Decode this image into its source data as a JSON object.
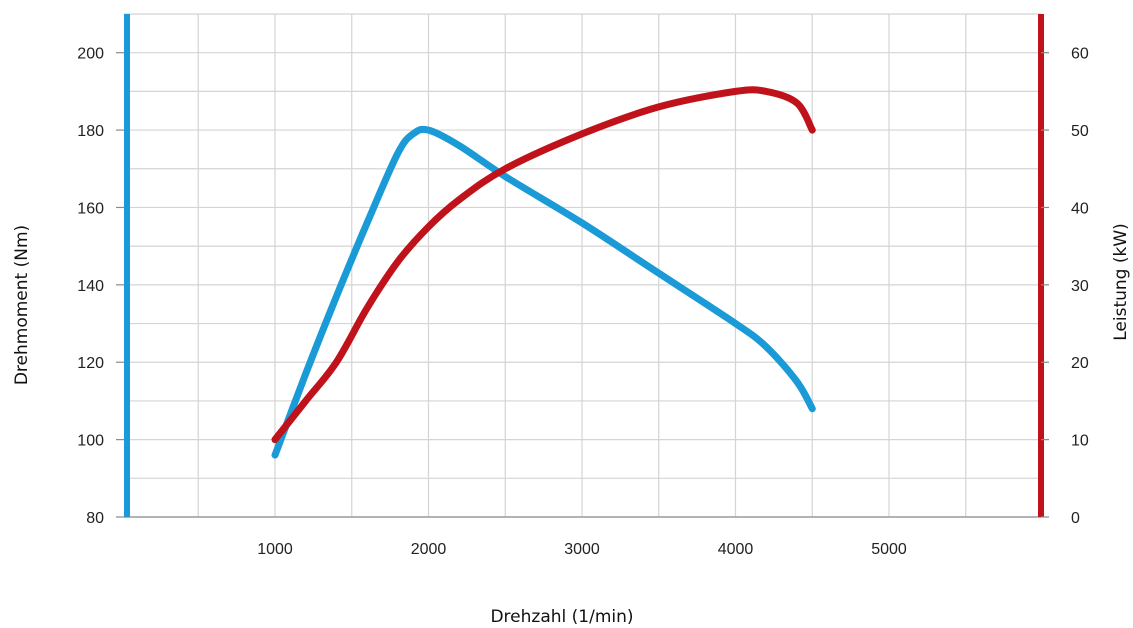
{
  "chart_data": {
    "type": "line",
    "xlabel": "Drehzahl (1/min)",
    "ylabel_left": "Drehmoment (Nm)",
    "ylabel_right": "Leistung (kW)",
    "xlim": [
      0,
      6000
    ],
    "ylim_left": [
      80,
      210
    ],
    "ylim_right": [
      0,
      65
    ],
    "x_ticks": [
      1000,
      2000,
      3000,
      4000,
      5000
    ],
    "y_ticks_left": [
      80,
      100,
      120,
      140,
      160,
      180,
      200
    ],
    "y_ticks_right": [
      0,
      10,
      20,
      30,
      40,
      50,
      60
    ],
    "grid": true,
    "series": [
      {
        "axis": "left",
        "color": "#1a9ad6",
        "x": [
          1000,
          1200,
          1400,
          1600,
          1800,
          1900,
          2000,
          2200,
          2500,
          3000,
          3500,
          4000,
          4200,
          4400,
          4500
        ],
        "y": [
          96,
          117,
          137,
          156,
          174,
          179,
          180,
          176,
          168,
          156,
          143,
          130,
          124,
          115,
          108
        ]
      },
      {
        "axis": "right",
        "color": "#c0121a",
        "x": [
          1000,
          1200,
          1400,
          1600,
          1800,
          2000,
          2200,
          2500,
          3000,
          3500,
          4000,
          4200,
          4400,
          4500
        ],
        "y": [
          10,
          15,
          20,
          27,
          33,
          37.5,
          41,
          45,
          49.5,
          53,
          55,
          55,
          53.5,
          50
        ]
      }
    ]
  }
}
